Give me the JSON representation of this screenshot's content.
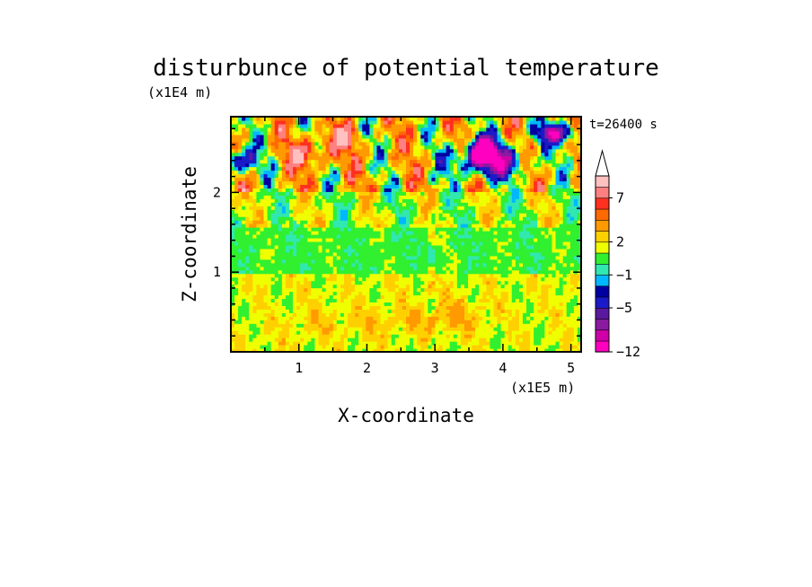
{
  "chart_data": {
    "type": "heatmap",
    "title": "disturbunce of potential temperature",
    "xlabel": "X-coordinate",
    "ylabel": "Z-coordinate",
    "x_unit": "(x1E5 m)",
    "y_unit": "(x1E4 m)",
    "time_label": "t=26400 s",
    "xlim": [
      0,
      5.15
    ],
    "ylim": [
      0,
      2.95
    ],
    "x_ticks": [
      1,
      2,
      3,
      4,
      5
    ],
    "x_tick_labels": [
      "1",
      "2",
      "3",
      "4",
      "5"
    ],
    "y_ticks": [
      1,
      2
    ],
    "y_tick_labels": [
      "1",
      "2"
    ],
    "colorbar": {
      "levels": [
        -12,
        -10,
        -8,
        -6,
        -5,
        -3,
        -2,
        -1,
        0,
        1,
        2,
        3,
        5,
        6,
        7,
        9,
        10
      ],
      "colors": [
        "#ff00c0",
        "#d000a8",
        "#8a1aa0",
        "#5a18a0",
        "#1a1ac8",
        "#0000a0",
        "#00b8ff",
        "#30e8b0",
        "#30f030",
        "#f0ff00",
        "#ffd000",
        "#ff9a00",
        "#ff6a00",
        "#ff3020",
        "#ff8080",
        "#ffc0c0"
      ],
      "labels": [
        "7",
        "2",
        "-1",
        "-5",
        "-12"
      ],
      "label_values": [
        7,
        2,
        -1,
        -5,
        -12
      ],
      "extend_top": true
    },
    "bands": [
      {
        "z": [
          0.0,
          0.98
        ],
        "value": 2.5,
        "description": "yellow/orange near-surface layer"
      },
      {
        "z": [
          0.98,
          1.55
        ],
        "value": 0.5,
        "description": "green layer"
      },
      {
        "z": [
          1.55,
          2.0
        ],
        "value": 1.5,
        "description": "green/yellow/orange mixed"
      },
      {
        "z": [
          2.0,
          2.95
        ],
        "value": 3.5,
        "description": "strong positive and negative perturbations"
      }
    ]
  }
}
